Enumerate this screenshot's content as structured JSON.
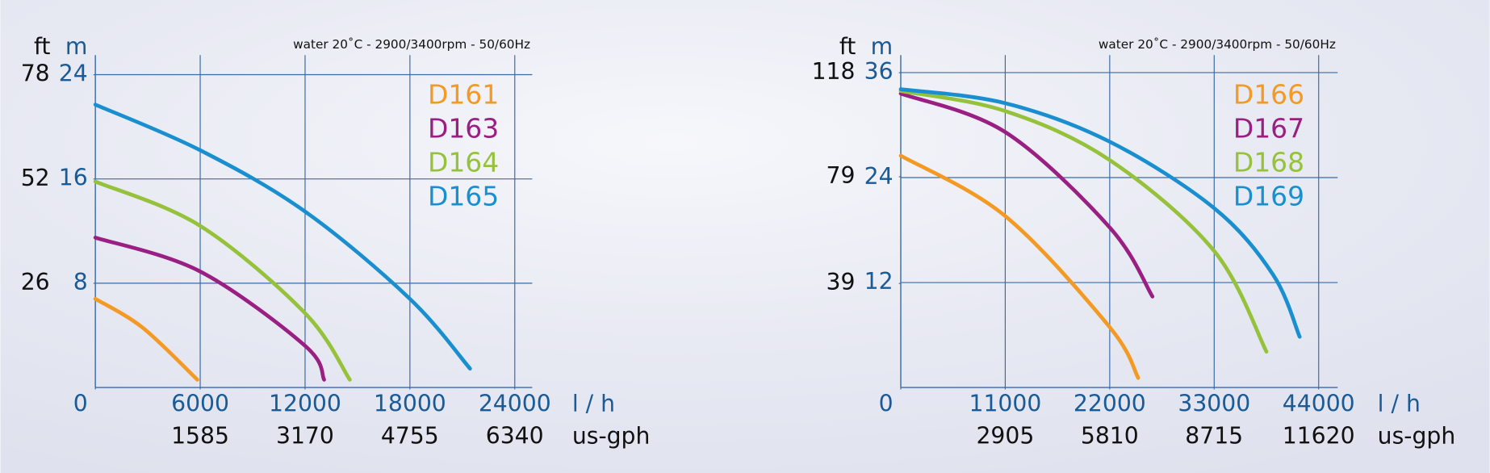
{
  "chart_data": [
    {
      "type": "line",
      "subtitle": "water 20˚C - 2900/3400rpm - 50/60Hz",
      "y_label": "m",
      "y2_label": "ft",
      "x_label": "l / h",
      "x2_label": "us-gph",
      "xlim": [
        0,
        25000
      ],
      "xticks": [
        0,
        6000,
        12000,
        18000,
        24000
      ],
      "x2lim": [
        0,
        6605
      ],
      "x2ticks": [
        1585,
        3170,
        4755,
        6340
      ],
      "ylim": [
        0,
        25.5
      ],
      "yticks": [
        8,
        16,
        24
      ],
      "y2lim": [
        0,
        82.9
      ],
      "y2ticks": [
        26,
        52,
        78
      ],
      "grid": true,
      "series": [
        {
          "name": "D161",
          "color": "#f39a25",
          "x": [
            0,
            2700,
            5836
          ],
          "values": [
            6.8,
            4.6,
            0.6
          ]
        },
        {
          "name": "D163",
          "color": "#9a1f83",
          "x": [
            0,
            6000,
            12000,
            13090
          ],
          "values": [
            11.5,
            8.9,
            3.2,
            0.6
          ]
        },
        {
          "name": "D164",
          "color": "#96c23b",
          "x": [
            0,
            6000,
            12000,
            14560
          ],
          "values": [
            15.8,
            12.4,
            5.7,
            0.6
          ]
        },
        {
          "name": "D165",
          "color": "#1a8fd0",
          "x": [
            0,
            6000,
            12000,
            18000,
            21440
          ],
          "values": [
            21.7,
            18.2,
            13.5,
            6.8,
            1.45
          ]
        }
      ]
    },
    {
      "type": "line",
      "subtitle": "water 20˚C - 2900/3400rpm - 50/60Hz",
      "y_label": "m",
      "y2_label": "ft",
      "x_label": "l / h",
      "x2_label": "us-gph",
      "xlim": [
        0,
        46000
      ],
      "xticks": [
        0,
        11000,
        22000,
        33000,
        44000
      ],
      "x2lim": [
        0,
        12150
      ],
      "x2ticks": [
        2905,
        5810,
        8715,
        11620
      ],
      "ylim": [
        0,
        38
      ],
      "yticks": [
        12,
        24,
        36
      ],
      "y2lim": [
        0,
        124.6
      ],
      "y2ticks": [
        39,
        79,
        118
      ],
      "grid": true,
      "series": [
        {
          "name": "D166",
          "color": "#f39a25",
          "x": [
            0,
            11000,
            22000,
            25000
          ],
          "values": [
            26.5,
            19.6,
            6.9,
            1.1
          ]
        },
        {
          "name": "D167",
          "color": "#9a1f83",
          "x": [
            0,
            11000,
            22000,
            26500
          ],
          "values": [
            33.6,
            29.2,
            18.3,
            10.4
          ]
        },
        {
          "name": "D168",
          "color": "#96c23b",
          "x": [
            0,
            11000,
            22000,
            33000,
            38500
          ],
          "values": [
            33.9,
            31.6,
            26.0,
            15.6,
            4.1
          ]
        },
        {
          "name": "D169",
          "color": "#1a8fd0",
          "x": [
            0,
            11000,
            22000,
            33000,
            39200,
            42000
          ],
          "values": [
            34.1,
            32.5,
            28.1,
            20.5,
            12.9,
            5.8
          ]
        }
      ]
    }
  ]
}
